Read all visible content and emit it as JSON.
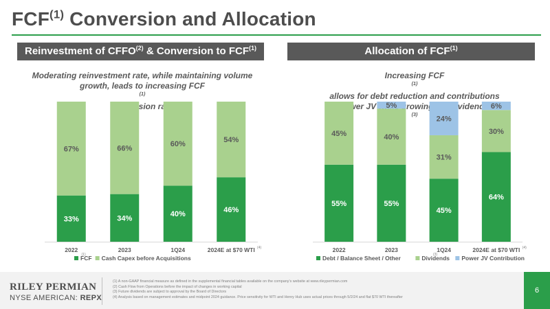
{
  "page": {
    "title": "FCF",
    "title_sup": "(1)",
    "title_rest": " Conversion and Allocation",
    "page_number": "6"
  },
  "left_panel": {
    "header": {
      "a": "Reinvestment of CFFO",
      "sup1": "(2)",
      "b": " & Conversion to FCF",
      "sup2": "(1)"
    },
    "subtitle_line1": "Moderating reinvestment rate, while maintaining volume",
    "subtitle_line2a": "growth, leads to increasing FCF",
    "subtitle_sup": "(1)",
    "subtitle_line2b": " conversion rate"
  },
  "right_panel": {
    "header": {
      "a": "Allocation of FCF",
      "sup": "(1)"
    },
    "subtitle_line1a": "Increasing FCF",
    "subtitle_sup1": "(1)",
    "subtitle_line1b": " allows for debt reduction and contributions",
    "subtitle_line2a": "to power JV while growing the dividend Y/Y",
    "subtitle_sup2": "(3)"
  },
  "chart_data": [
    {
      "type": "bar",
      "stacked": true,
      "percent_stacked": true,
      "categories": [
        "2022",
        "2023",
        "1Q24",
        "2024E at $70 WTI"
      ],
      "category_footnotes": [
        "",
        "",
        "",
        "(4)"
      ],
      "series": [
        {
          "name": "FCF",
          "name_footnote": "(1)",
          "values": [
            33,
            34,
            40,
            46
          ],
          "color": "#2b9e4a",
          "label_color": "#ffffff"
        },
        {
          "name": "Cash Capex before Acquisitions",
          "values": [
            67,
            66,
            60,
            54
          ],
          "color": "#a9d18e",
          "label_color": "#595959"
        }
      ],
      "data_labels": [
        [
          "33%",
          "34%",
          "40%",
          "46%"
        ],
        [
          "67%",
          "66%",
          "60%",
          "54%"
        ]
      ],
      "ylim": [
        0,
        100
      ],
      "legend": "bottom",
      "grid": false
    },
    {
      "type": "bar",
      "stacked": true,
      "percent_stacked": true,
      "categories": [
        "2022",
        "2023",
        "1Q24",
        "2024E at $70 WTI"
      ],
      "category_footnotes": [
        "",
        "",
        "",
        "(4)"
      ],
      "series": [
        {
          "name": "Debt / Balance Sheet / Other",
          "values": [
            55,
            55,
            45,
            64
          ],
          "color": "#2b9e4a",
          "label_color": "#ffffff"
        },
        {
          "name": "Dividends",
          "name_footnote": "(3)",
          "values": [
            45,
            40,
            31,
            30
          ],
          "color": "#a9d18e",
          "label_color": "#595959"
        },
        {
          "name": "Power JV Contribution",
          "values": [
            0,
            5,
            24,
            6
          ],
          "color": "#9dc3e6",
          "label_color": "#595959"
        }
      ],
      "data_labels": [
        [
          "55%",
          "55%",
          "45%",
          "64%"
        ],
        [
          "45%",
          "40%",
          "31%",
          "30%"
        ],
        [
          "",
          "5%",
          "24%",
          "6%"
        ]
      ],
      "ylim": [
        0,
        100
      ],
      "legend": "bottom",
      "grid": false
    }
  ],
  "brand": {
    "name": "RILEY PERMIAN",
    "exchange": "NYSE AMERICAN: ",
    "ticker": "REPX"
  },
  "footnotes": [
    "(1)  A non-GAAP financial measure as defined in the supplemental financial tables available on the company’s website at www.rileypermian.com",
    "(2)  Cash Flow from Operations before the impact of changes in working capital",
    "(3)  Future dividends are subject to approval by the Board of Directors",
    "(4)  Analysis based on management estimates and midpoint 2024 guidance. Price sensitivity for WTI and Henry Hub uses actual prices through 5/2/24 and flat $70 WTI thereafter"
  ]
}
